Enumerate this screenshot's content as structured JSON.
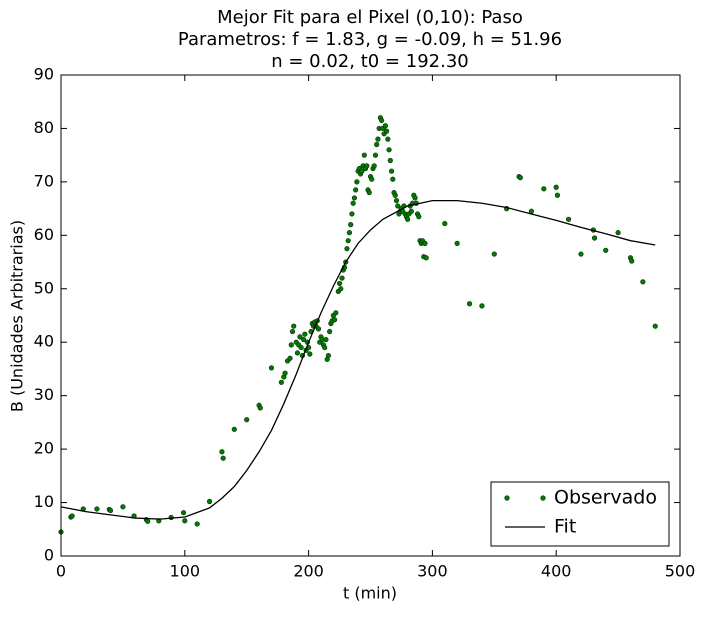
{
  "chart_data": {
    "type": "scatter",
    "title": [
      "Mejor Fit para el Pixel (0,10): Paso",
      "Parametros: f = 1.83, g = -0.09, h = 51.96",
      "n = 0.02, t0 = 192.30"
    ],
    "x_label": "t (min)",
    "y_label": "B (Unidades Arbitrarias)",
    "xlim": [
      0,
      500
    ],
    "xticks": [
      0,
      100,
      200,
      300,
      400,
      500
    ],
    "ylim": [
      0,
      90
    ],
    "yticks": [
      0,
      10,
      20,
      30,
      40,
      50,
      60,
      70,
      80,
      90
    ],
    "legend": "lower right",
    "series": [
      {
        "name": "Observado",
        "type": "scatter",
        "color": "#007a00",
        "x": [
          0,
          8,
          9,
          18,
          29,
          39,
          40,
          50,
          59,
          69,
          70,
          79,
          89,
          99,
          100,
          110,
          120,
          130,
          131,
          140,
          150,
          160,
          161,
          170,
          178,
          180,
          181,
          183,
          185,
          186,
          187,
          188,
          190,
          191,
          192,
          193,
          194,
          195,
          196,
          197,
          198,
          199,
          200,
          201,
          202,
          203,
          204,
          205,
          206,
          207,
          208,
          209,
          210,
          211,
          212,
          213,
          214,
          215,
          216,
          217,
          218,
          219,
          220,
          221,
          222,
          224,
          225,
          226,
          227,
          228,
          229,
          230,
          231,
          232,
          233,
          234,
          235,
          236,
          237,
          238,
          239,
          240,
          241,
          242,
          243,
          244,
          245,
          246,
          247,
          248,
          249,
          250,
          251,
          252,
          253,
          254,
          255,
          256,
          257,
          258,
          259,
          260,
          261,
          262,
          263,
          264,
          265,
          266,
          267,
          268,
          269,
          270,
          271,
          272,
          273,
          274,
          275,
          276,
          277,
          278,
          279,
          280,
          281,
          282,
          283,
          284,
          285,
          286,
          287,
          288,
          289,
          290,
          291,
          292,
          293,
          294,
          295,
          310,
          320,
          330,
          340,
          350,
          360,
          370,
          371,
          380,
          390,
          400,
          401,
          410,
          420,
          430,
          431,
          440,
          450,
          460,
          461,
          470,
          480
        ],
        "values": [
          4.5,
          7.3,
          7.5,
          8.8,
          8.8,
          8.7,
          8.5,
          9.2,
          7.5,
          6.8,
          6.5,
          6.6,
          7.2,
          8.1,
          6.6,
          6.0,
          10.2,
          19.5,
          18.3,
          23.7,
          25.5,
          28.2,
          27.7,
          35.2,
          32.5,
          33.5,
          34.2,
          36.5,
          37,
          39.5,
          42,
          43,
          40,
          38,
          39.5,
          41,
          39,
          37.5,
          40.5,
          41.5,
          38.5,
          40,
          39,
          37.8,
          42,
          43.5,
          43,
          43.8,
          43,
          44,
          42.5,
          40,
          41,
          40.5,
          39.5,
          39,
          40.5,
          36.8,
          37.5,
          42,
          43.5,
          44,
          45,
          44.2,
          45.5,
          49.5,
          51,
          50,
          52,
          53.5,
          54,
          55,
          57.5,
          59,
          60.5,
          62,
          64,
          66,
          67,
          68.5,
          70,
          72,
          72.5,
          71.5,
          72,
          73,
          75,
          72.5,
          73,
          68.5,
          68,
          71,
          70.5,
          72.5,
          73,
          75,
          77,
          78,
          80,
          82,
          81.5,
          80,
          79,
          80.5,
          79.5,
          78,
          76,
          74,
          72,
          70.5,
          68,
          67.5,
          66.5,
          65.5,
          64,
          64.5,
          65,
          64.5,
          65.5,
          64,
          63.5,
          63,
          64,
          65.5,
          64.5,
          66,
          67.5,
          67,
          66,
          64,
          63.5,
          59,
          58.5,
          59,
          56,
          58.5,
          55.8,
          62.2,
          58.5,
          47.2,
          46.8,
          56.5,
          65,
          71,
          70.8,
          64.5,
          68.7,
          69,
          67.5,
          63,
          56.5,
          61,
          59.5,
          57.2,
          60.5,
          55.8,
          55.2,
          51.3,
          43
        ]
      },
      {
        "name": "Fit",
        "type": "line",
        "color": "#000000",
        "x": [
          0,
          20,
          40,
          60,
          80,
          100,
          120,
          130,
          140,
          150,
          160,
          170,
          180,
          190,
          200,
          210,
          220,
          230,
          240,
          250,
          260,
          280,
          300,
          320,
          340,
          360,
          380,
          400,
          420,
          440,
          460,
          480
        ],
        "values": [
          9.2,
          8.3,
          7.7,
          7.1,
          6.9,
          7.3,
          9,
          10.8,
          13,
          16,
          19.5,
          23.5,
          28.5,
          34,
          40,
          45.5,
          50.5,
          55,
          58.5,
          61,
          63,
          65.5,
          66.5,
          66.5,
          66,
          65.2,
          64,
          62.8,
          61.5,
          60.3,
          59,
          58.2
        ]
      }
    ]
  }
}
